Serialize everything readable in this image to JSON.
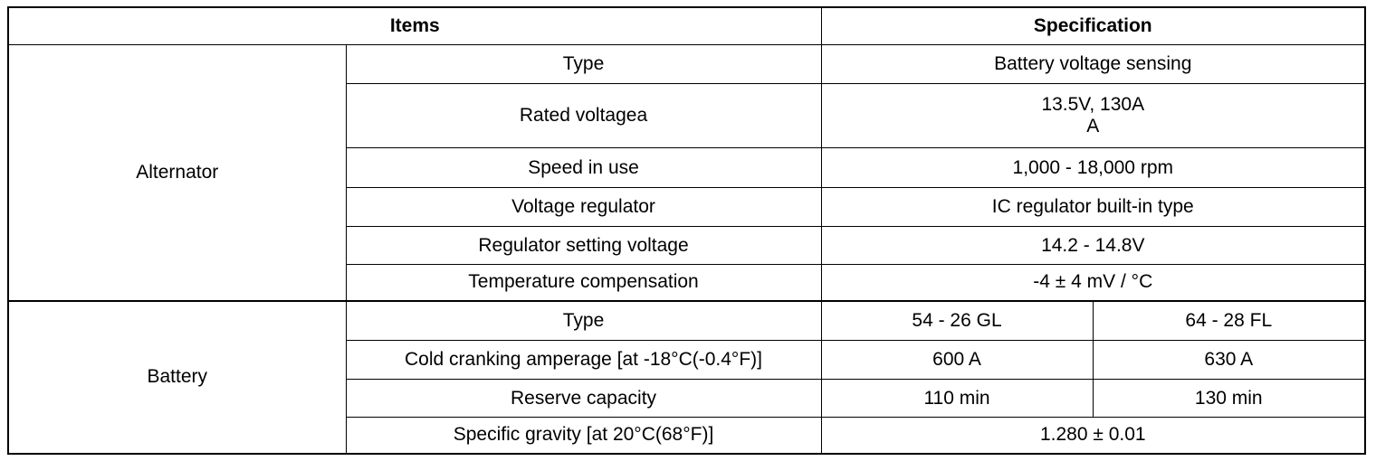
{
  "table": {
    "header": [
      "Items",
      "Specification"
    ],
    "groups": [
      {
        "name": "Alternator",
        "rows": [
          [
            "Type",
            "Battery voltage sensing"
          ],
          [
            "Rated voltagea",
            "13.5V, 130A\nA"
          ],
          [
            "Speed in use",
            "1,000 - 18,000 rpm"
          ],
          [
            "Voltage regulator",
            "IC regulator built-in type"
          ],
          [
            "Regulator setting voltage",
            "14.2 - 14.8V"
          ],
          [
            "Temperature compensation",
            "-4 ± 4 mV / °C"
          ]
        ]
      },
      {
        "name": "Battery",
        "rows": [
          [
            "Type",
            "54 - 26 GL",
            "64 - 28 FL"
          ],
          [
            "Cold cranking amperage [at -18°C(-0.4°F)]",
            "600 A",
            "630 A"
          ],
          [
            "Reserve capacity",
            "110 min",
            "130 min"
          ],
          [
            "Specific gravity [at 20°C(68°F)]",
            "1.280 ± 0.01"
          ]
        ]
      }
    ]
  }
}
